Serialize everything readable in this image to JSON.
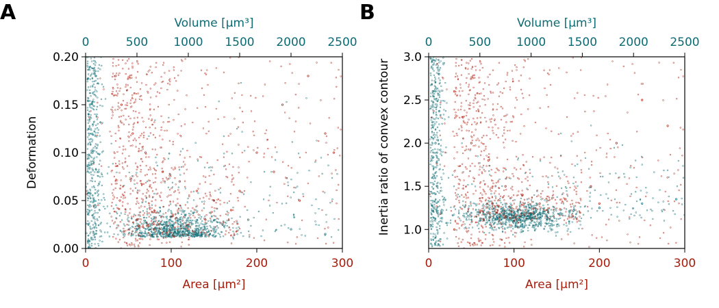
{
  "colors": {
    "area_axis": "#a61c0b",
    "volume_axis": "#0b6b73",
    "series_red": "#b02010",
    "series_teal": "#0b6b73"
  },
  "chart_data": [
    {
      "panel_label": "A",
      "type": "scatter",
      "xlabel": "Area [µm²]",
      "xlabel_top": "Volume [µm³]",
      "ylabel": "Deformation",
      "xlim": [
        0,
        300
      ],
      "xlim_top": [
        0,
        2500
      ],
      "ylim": [
        0,
        0.2
      ],
      "xticks": [
        0,
        100,
        200,
        300
      ],
      "xticks_top": [
        0,
        500,
        1000,
        1500,
        2000,
        2500
      ],
      "yticks": [
        0.0,
        0.05,
        0.1,
        0.15,
        0.2
      ],
      "ytick_labels": [
        "0.00",
        "0.05",
        "0.10",
        "0.15",
        "0.20"
      ],
      "grid": false,
      "series": [
        {
          "color": "#b02010",
          "description": "sparser cloud spread across wide area range",
          "points": [
            [
              35,
              0.18
            ],
            [
              42,
              0.15
            ],
            [
              55,
              0.12
            ],
            [
              70,
              0.1
            ],
            [
              90,
              0.08
            ],
            [
              110,
              0.07
            ],
            [
              130,
              0.06
            ],
            [
              150,
              0.05
            ],
            [
              170,
              0.04
            ],
            [
              200,
              0.1
            ],
            [
              230,
              0.15
            ],
            [
              260,
              0.18
            ],
            [
              280,
              0.12
            ],
            [
              40,
              0.05
            ],
            [
              60,
              0.03
            ],
            [
              80,
              0.02
            ],
            [
              120,
              0.02
            ],
            [
              140,
              0.03
            ],
            [
              180,
              0.06
            ],
            [
              220,
              0.08
            ],
            [
              250,
              0.05
            ],
            [
              290,
              0.1
            ]
          ]
        },
        {
          "color": "#0b6b73",
          "description": "dense cluster near area 100 µm², low deformation; vertical band near area 0-20",
          "points": [
            [
              5,
              0.15
            ],
            [
              8,
              0.1
            ],
            [
              10,
              0.05
            ],
            [
              12,
              0.18
            ],
            [
              15,
              0.08
            ],
            [
              60,
              0.02
            ],
            [
              80,
              0.015
            ],
            [
              100,
              0.012
            ],
            [
              110,
              0.015
            ],
            [
              120,
              0.018
            ],
            [
              140,
              0.02
            ],
            [
              160,
              0.025
            ],
            [
              190,
              0.03
            ],
            [
              240,
              0.02
            ],
            [
              280,
              0.015
            ]
          ]
        }
      ]
    },
    {
      "panel_label": "B",
      "type": "scatter",
      "xlabel": "Area [µm²]",
      "xlabel_top": "Volume [µm³]",
      "ylabel": "Inertia ratio of convex contour",
      "xlim": [
        0,
        300
      ],
      "xlim_top": [
        0,
        2500
      ],
      "ylim": [
        0.78,
        3.0
      ],
      "xticks": [
        0,
        100,
        200,
        300
      ],
      "xticks_top": [
        0,
        500,
        1000,
        1500,
        2000,
        2500
      ],
      "yticks": [
        1.0,
        1.5,
        2.0,
        2.5,
        3.0
      ],
      "ytick_labels": [
        "1.0",
        "1.5",
        "2.0",
        "2.5",
        "3.0"
      ],
      "grid": false,
      "series": [
        {
          "color": "#b02010",
          "description": "sparser cloud spread across wide area range",
          "points": [
            [
              30,
              2.6
            ],
            [
              40,
              2.3
            ],
            [
              50,
              2.0
            ],
            [
              70,
              1.8
            ],
            [
              90,
              1.5
            ],
            [
              110,
              1.4
            ],
            [
              130,
              1.3
            ],
            [
              160,
              1.35
            ],
            [
              190,
              1.5
            ],
            [
              220,
              2.0
            ],
            [
              250,
              2.5
            ],
            [
              280,
              2.2
            ],
            [
              30,
              1.0
            ],
            [
              60,
              1.2
            ],
            [
              100,
              1.1
            ],
            [
              140,
              1.2
            ],
            [
              200,
              1.3
            ]
          ]
        },
        {
          "color": "#0b6b73",
          "description": "dense cluster near area 100 µm², inertia ratio ~1.15; vertical band near area 0-20",
          "points": [
            [
              5,
              2.6
            ],
            [
              8,
              2.0
            ],
            [
              10,
              1.5
            ],
            [
              12,
              2.8
            ],
            [
              15,
              1.2
            ],
            [
              60,
              1.1
            ],
            [
              80,
              1.12
            ],
            [
              100,
              1.15
            ],
            [
              120,
              1.18
            ],
            [
              140,
              1.2
            ],
            [
              170,
              1.22
            ],
            [
              200,
              1.25
            ],
            [
              250,
              1.3
            ],
            [
              290,
              1.35
            ]
          ]
        }
      ]
    }
  ]
}
